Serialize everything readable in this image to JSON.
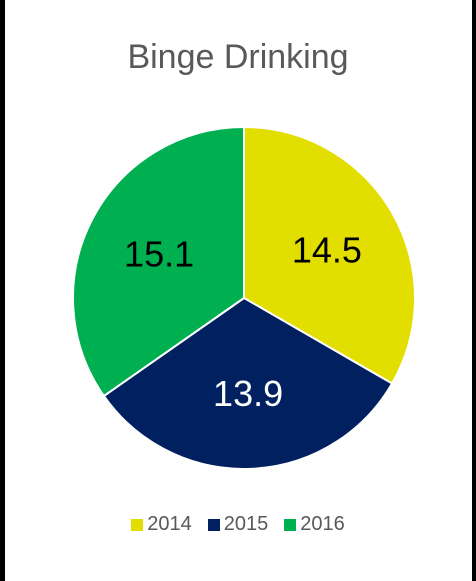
{
  "chart_data": {
    "type": "pie",
    "title": "Binge Drinking",
    "categories": [
      "2014",
      "2015",
      "2016"
    ],
    "values": [
      14.5,
      13.9,
      15.1
    ],
    "colors": [
      "#E2DE00",
      "#002060",
      "#00B050"
    ],
    "label_colors": [
      "#000000",
      "#FFFFFF",
      "#000000"
    ],
    "labels": [
      "14.5",
      "13.9",
      "15.1"
    ],
    "start_angle_deg": 0,
    "direction": "clockwise",
    "legend": {
      "position": "bottom",
      "entries": [
        "2014",
        "2015",
        "2016"
      ]
    }
  }
}
